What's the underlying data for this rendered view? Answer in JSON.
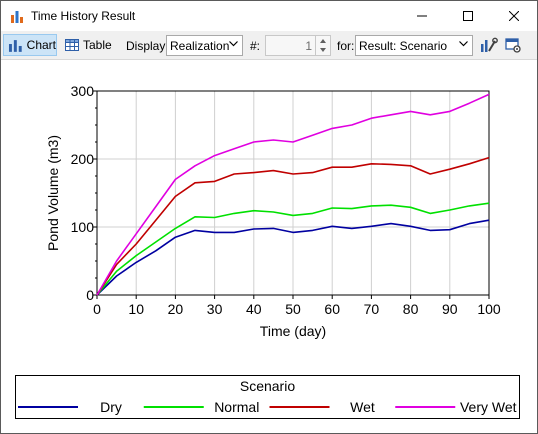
{
  "window": {
    "title": "Time History Result",
    "controls": {
      "minimize_icon": "minimize-icon",
      "maximize_icon": "maximize-icon",
      "close_icon": "close-icon"
    }
  },
  "toolbar": {
    "chart_label": "Chart",
    "table_label": "Table",
    "display_label": "Display:",
    "display_value": "Realization",
    "number_label": "#:",
    "number_value": "1",
    "for_label": "for:",
    "for_value": "Result: Scenario",
    "active_view": "Chart"
  },
  "colors": {
    "dry": "#0000a0",
    "normal": "#00e000",
    "wet": "#c00000",
    "very_wet": "#e000e0"
  },
  "chart_data": {
    "type": "line",
    "xlabel": "Time (day)",
    "ylabel": "Pond Volume (m3)",
    "xlim": [
      0,
      100
    ],
    "ylim": [
      0,
      300
    ],
    "xticks": [
      "0",
      "10",
      "20",
      "30",
      "40",
      "50",
      "60",
      "70",
      "80",
      "90",
      "100"
    ],
    "yticks": [
      "0",
      "100",
      "200",
      "300"
    ],
    "grid": true,
    "legend": {
      "title": "Scenario",
      "placement": "bottom"
    },
    "x": [
      0,
      5,
      10,
      15,
      20,
      25,
      30,
      35,
      40,
      45,
      50,
      55,
      60,
      65,
      70,
      75,
      80,
      85,
      90,
      95,
      100
    ],
    "series": [
      {
        "name": "Dry",
        "color": "#0000a0",
        "values": [
          0,
          28,
          48,
          65,
          85,
          95,
          92,
          92,
          97,
          98,
          92,
          95,
          101,
          98,
          101,
          105,
          101,
          95,
          96,
          105,
          110
        ]
      },
      {
        "name": "Normal",
        "color": "#00e000",
        "values": [
          0,
          35,
          58,
          78,
          98,
          115,
          114,
          120,
          124,
          122,
          117,
          120,
          128,
          127,
          131,
          132,
          129,
          120,
          125,
          131,
          135
        ]
      },
      {
        "name": "Wet",
        "color": "#c00000",
        "values": [
          0,
          45,
          75,
          110,
          145,
          165,
          167,
          178,
          180,
          183,
          178,
          180,
          188,
          188,
          193,
          192,
          190,
          178,
          185,
          193,
          202
        ]
      },
      {
        "name": "Very Wet",
        "color": "#e000e0",
        "values": [
          0,
          50,
          90,
          130,
          170,
          190,
          205,
          215,
          225,
          228,
          225,
          235,
          245,
          250,
          260,
          265,
          270,
          265,
          270,
          282,
          295
        ]
      }
    ]
  }
}
